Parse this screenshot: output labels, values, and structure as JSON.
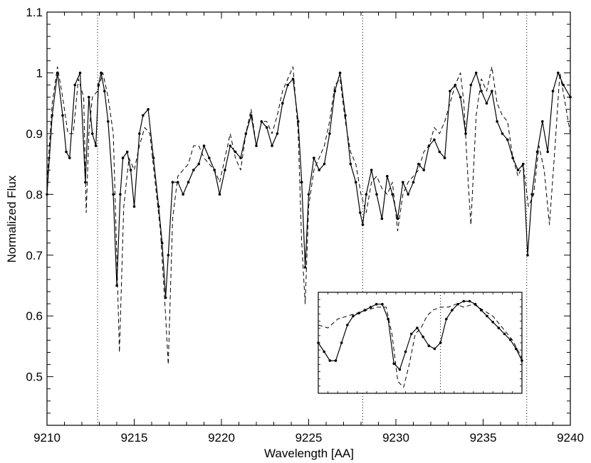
{
  "chart_data": {
    "type": "line",
    "title": "",
    "xlabel": "Wavelength [AA]",
    "ylabel": "Normalized Flux",
    "xlim": [
      9210,
      9240
    ],
    "ylim": [
      0.42,
      1.1
    ],
    "x_ticks": [
      9210,
      9215,
      9220,
      9225,
      9230,
      9235,
      9240
    ],
    "x_tick_labels": [
      "9210",
      "9215",
      "9220",
      "9225",
      "9230",
      "9235",
      "9240"
    ],
    "y_ticks": [
      0.5,
      0.6,
      0.7,
      0.8,
      0.9,
      1.0,
      1.1
    ],
    "y_tick_labels": [
      "0.5",
      "0.6",
      "0.7",
      "0.8",
      "0.9",
      "1",
      "1.1"
    ],
    "grid": false,
    "vertical_lines": [
      9212.9,
      9228.1,
      9237.5
    ],
    "series": [
      {
        "style": "solid-with-dots",
        "x": [
          9210.0,
          9210.3,
          9210.6,
          9210.9,
          9211.1,
          9211.3,
          9211.6,
          9211.9,
          9212.2,
          9212.4,
          9212.6,
          9212.8,
          9212.95,
          9213.1,
          9213.3,
          9213.5,
          9213.8,
          9214.0,
          9214.2,
          9214.35,
          9214.6,
          9214.8,
          9215.0,
          9215.3,
          9215.5,
          9215.8,
          9216.1,
          9216.4,
          9216.6,
          9216.8,
          9216.95,
          9217.2,
          9217.5,
          9217.8,
          9218.1,
          9218.4,
          9218.7,
          9219.0,
          9219.3,
          9219.6,
          9219.9,
          9220.2,
          9220.5,
          9220.8,
          9221.1,
          9221.4,
          9221.7,
          9222.0,
          9222.3,
          9222.6,
          9222.9,
          9223.2,
          9223.5,
          9223.8,
          9224.1,
          9224.4,
          9224.6,
          9224.8,
          9225.0,
          9225.3,
          9225.6,
          9225.9,
          9226.2,
          9226.5,
          9226.8,
          9227.1,
          9227.4,
          9227.7,
          9227.95,
          9228.1,
          9228.3,
          9228.6,
          9228.9,
          9229.2,
          9229.5,
          9229.8,
          9230.1,
          9230.4,
          9230.7,
          9231.0,
          9231.3,
          9231.6,
          9231.9,
          9232.2,
          9232.5,
          9232.8,
          9233.1,
          9233.4,
          9233.7,
          9234.0,
          9234.3,
          9234.6,
          9234.9,
          9235.2,
          9235.5,
          9235.8,
          9236.1,
          9236.4,
          9236.7,
          9237.0,
          9237.3,
          9237.55,
          9237.8,
          9238.1,
          9238.4,
          9238.7,
          9239.0,
          9239.3,
          9239.6,
          9240.0
        ],
        "y": [
          0.8,
          0.93,
          1.0,
          0.93,
          0.87,
          0.86,
          0.98,
          1.0,
          0.82,
          0.96,
          0.9,
          0.88,
          0.98,
          1.0,
          0.97,
          0.92,
          0.8,
          0.65,
          0.8,
          0.86,
          0.87,
          0.84,
          0.78,
          0.9,
          0.93,
          0.94,
          0.86,
          0.78,
          0.72,
          0.63,
          0.7,
          0.82,
          0.82,
          0.8,
          0.82,
          0.84,
          0.85,
          0.88,
          0.86,
          0.84,
          0.8,
          0.84,
          0.88,
          0.87,
          0.86,
          0.9,
          0.93,
          0.88,
          0.92,
          0.91,
          0.88,
          0.9,
          0.95,
          0.98,
          0.99,
          0.92,
          0.82,
          0.68,
          0.8,
          0.86,
          0.84,
          0.85,
          0.9,
          0.97,
          1.0,
          0.93,
          0.85,
          0.82,
          0.77,
          0.75,
          0.8,
          0.84,
          0.8,
          0.76,
          0.83,
          0.8,
          0.76,
          0.82,
          0.8,
          0.82,
          0.85,
          0.84,
          0.88,
          0.89,
          0.87,
          0.86,
          0.97,
          0.98,
          0.96,
          0.9,
          0.98,
          1.0,
          0.97,
          0.95,
          0.97,
          0.92,
          0.9,
          0.89,
          0.86,
          0.84,
          0.85,
          0.7,
          0.8,
          0.87,
          0.92,
          0.87,
          0.97,
          1.0,
          0.98,
          0.96
        ]
      },
      {
        "style": "dashed",
        "x": [
          9210.0,
          9210.3,
          9210.6,
          9210.9,
          9211.2,
          9211.5,
          9211.8,
          9212.1,
          9212.25,
          9212.4,
          9212.6,
          9212.9,
          9213.2,
          9213.5,
          9213.8,
          9214.0,
          9214.15,
          9214.4,
          9214.7,
          9215.0,
          9215.3,
          9215.6,
          9215.9,
          9216.2,
          9216.5,
          9216.8,
          9216.95,
          9217.2,
          9217.5,
          9217.8,
          9218.1,
          9218.4,
          9218.7,
          9219.0,
          9219.3,
          9219.6,
          9219.9,
          9220.2,
          9220.5,
          9220.8,
          9221.1,
          9221.4,
          9221.7,
          9222.0,
          9222.3,
          9222.6,
          9222.9,
          9223.2,
          9223.5,
          9223.8,
          9224.1,
          9224.4,
          9224.6,
          9224.8,
          9225.0,
          9225.3,
          9225.6,
          9225.9,
          9226.2,
          9226.5,
          9226.8,
          9227.1,
          9227.4,
          9227.7,
          9228.0,
          9228.3,
          9228.6,
          9228.9,
          9229.2,
          9229.5,
          9229.8,
          9230.1,
          9230.4,
          9230.7,
          9231.0,
          9231.3,
          9231.6,
          9231.9,
          9232.2,
          9232.5,
          9232.8,
          9233.1,
          9233.4,
          9233.7,
          9233.9,
          9234.1,
          9234.3,
          9234.6,
          9234.9,
          9235.2,
          9235.5,
          9235.8,
          9236.1,
          9236.4,
          9236.7,
          9237.0,
          9237.3,
          9237.6,
          9237.9,
          9238.2,
          9238.5,
          9238.8,
          9239.1,
          9239.4,
          9239.7,
          9240.0
        ],
        "y": [
          0.82,
          0.95,
          1.01,
          0.96,
          0.9,
          0.9,
          0.99,
          0.96,
          0.77,
          0.9,
          0.96,
          0.97,
          1.0,
          0.96,
          0.9,
          0.7,
          0.54,
          0.78,
          0.86,
          0.84,
          0.88,
          0.91,
          0.9,
          0.82,
          0.74,
          0.6,
          0.52,
          0.76,
          0.83,
          0.84,
          0.85,
          0.88,
          0.88,
          0.86,
          0.85,
          0.84,
          0.82,
          0.86,
          0.9,
          0.86,
          0.84,
          0.9,
          0.94,
          0.88,
          0.92,
          0.92,
          0.9,
          0.93,
          0.97,
          0.99,
          1.01,
          0.9,
          0.72,
          0.62,
          0.78,
          0.84,
          0.86,
          0.88,
          0.92,
          0.98,
          0.99,
          0.92,
          0.87,
          0.85,
          0.8,
          0.77,
          0.82,
          0.83,
          0.81,
          0.8,
          0.82,
          0.74,
          0.8,
          0.82,
          0.83,
          0.84,
          0.87,
          0.88,
          0.91,
          0.9,
          0.92,
          0.95,
          0.98,
          1.0,
          0.95,
          0.84,
          0.75,
          0.93,
          0.99,
          0.97,
          1.01,
          0.95,
          0.93,
          0.92,
          0.86,
          0.83,
          0.85,
          0.78,
          0.8,
          0.88,
          0.84,
          0.75,
          0.87,
          1.0,
          0.95,
          0.9
        ]
      }
    ],
    "inset": {
      "xlim": [
        9226.5,
        9237
      ],
      "ylim": [
        0.68,
        1.02
      ],
      "vertical_lines": [
        9232.8
      ],
      "series": [
        {
          "style": "solid-with-dots",
          "x": [
            9226.5,
            9226.8,
            9227.1,
            9227.4,
            9227.7,
            9228.0,
            9228.3,
            9228.6,
            9228.9,
            9229.2,
            9229.5,
            9229.8,
            9230.1,
            9230.4,
            9230.7,
            9231.0,
            9231.3,
            9231.6,
            9231.9,
            9232.2,
            9232.5,
            9232.8,
            9233.1,
            9233.4,
            9233.7,
            9234.0,
            9234.3,
            9234.6,
            9234.9,
            9235.2,
            9235.5,
            9235.8,
            9236.1,
            9236.4,
            9236.7,
            9237.0
          ],
          "y": [
            0.85,
            0.82,
            0.79,
            0.79,
            0.85,
            0.91,
            0.94,
            0.95,
            0.96,
            0.97,
            0.98,
            0.98,
            0.93,
            0.78,
            0.76,
            0.82,
            0.88,
            0.9,
            0.87,
            0.84,
            0.83,
            0.85,
            0.93,
            0.96,
            0.98,
            0.99,
            0.99,
            0.98,
            0.96,
            0.94,
            0.92,
            0.9,
            0.88,
            0.86,
            0.83,
            0.79
          ]
        },
        {
          "style": "dashed",
          "x": [
            9226.5,
            9227.0,
            9227.5,
            9228.0,
            9228.5,
            9229.0,
            9229.5,
            9230.0,
            9230.3,
            9230.6,
            9230.9,
            9231.2,
            9231.5,
            9231.8,
            9232.1,
            9232.4,
            9232.8,
            9233.2,
            9233.6,
            9234.0,
            9234.5,
            9235.0,
            9235.5,
            9236.0,
            9236.5,
            9237.0
          ],
          "y": [
            0.91,
            0.9,
            0.93,
            0.94,
            0.95,
            0.96,
            0.97,
            0.97,
            0.88,
            0.72,
            0.7,
            0.78,
            0.88,
            0.9,
            0.94,
            0.96,
            0.97,
            0.97,
            0.98,
            0.97,
            0.98,
            0.96,
            0.94,
            0.9,
            0.86,
            0.8
          ]
        }
      ]
    }
  }
}
